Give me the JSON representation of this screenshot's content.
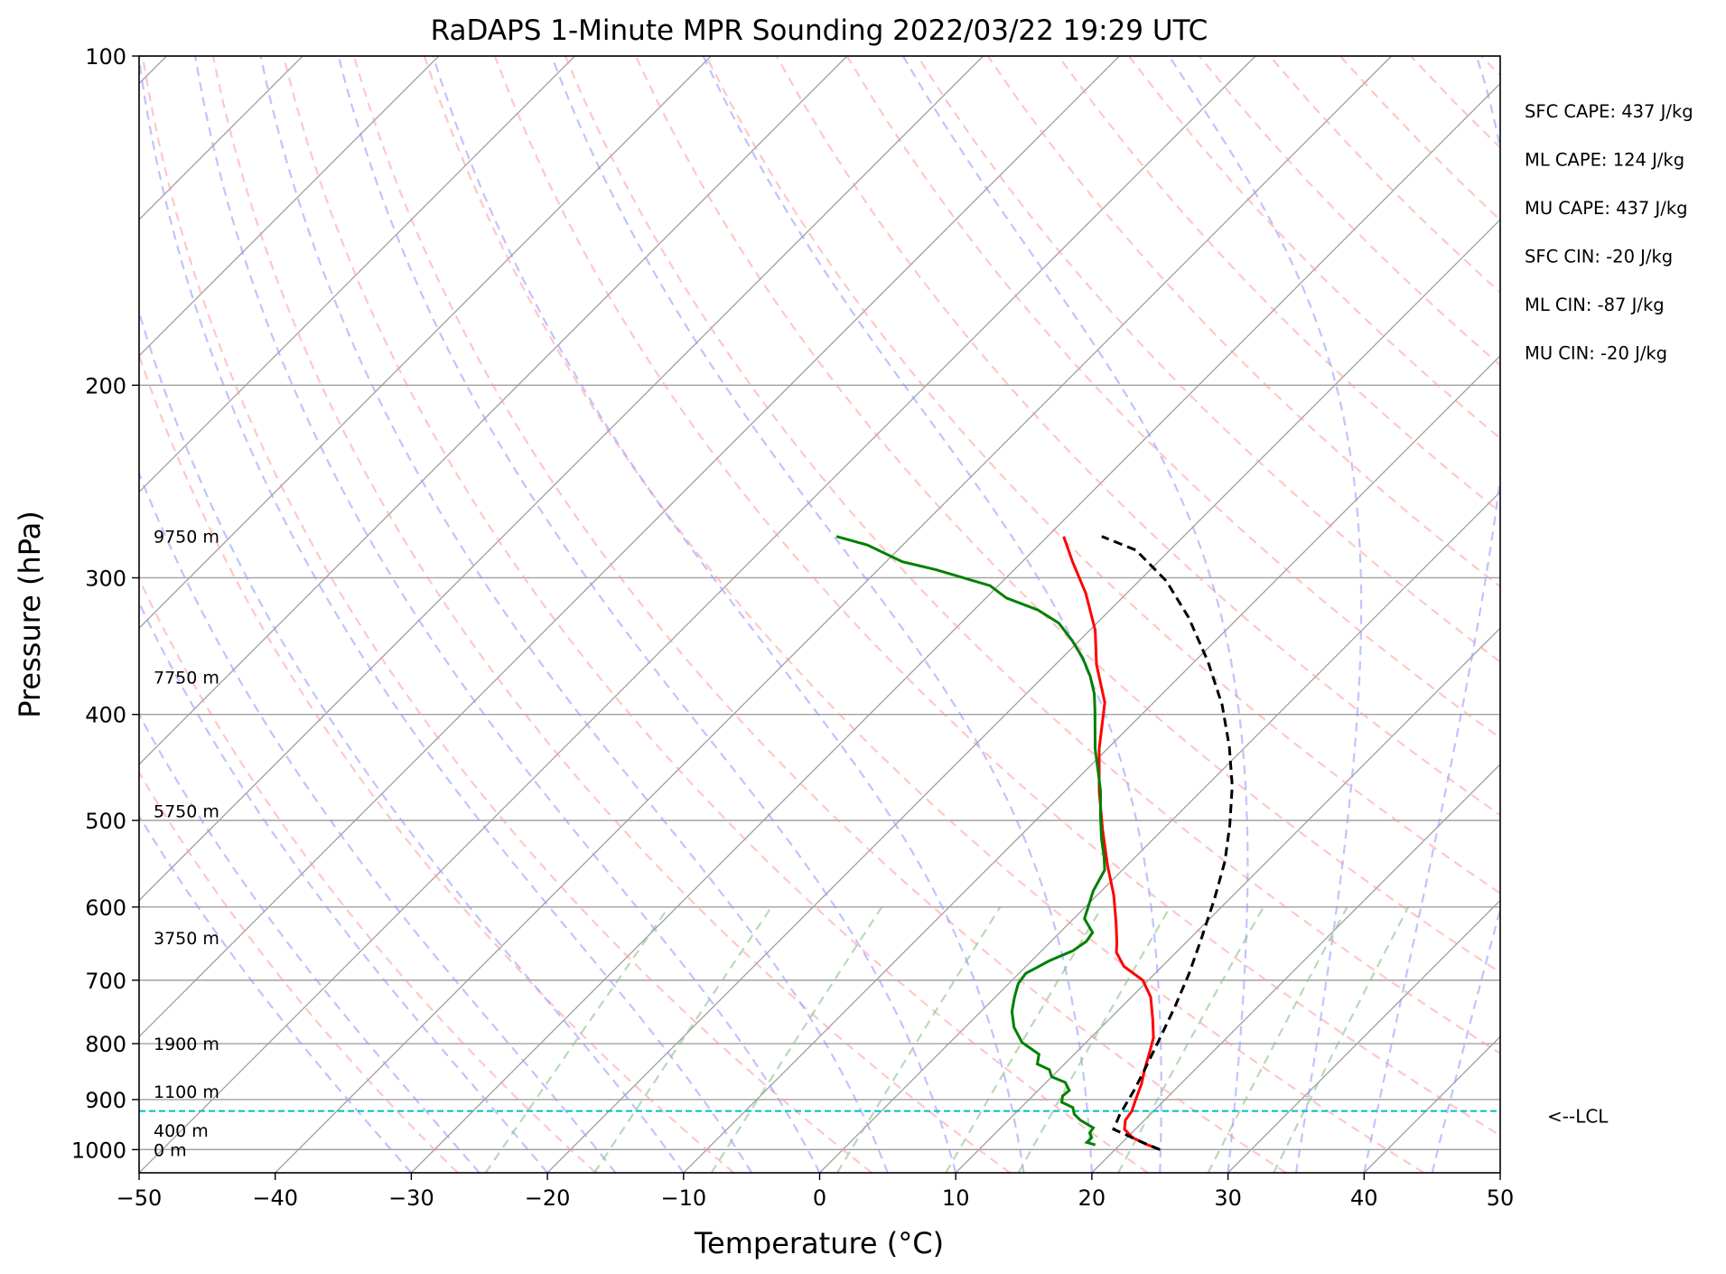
{
  "chart_data": {
    "type": "line",
    "title": "RaDAPS 1-Minute MPR Sounding 2022/03/22 19:29 UTC",
    "xlabel": "Temperature (°C)",
    "ylabel": "Pressure (hPa)",
    "xlim": [
      -50,
      50
    ],
    "ylim": [
      1050,
      100
    ],
    "y_scale": "log",
    "skew": "skew-T",
    "x_ticks": [
      -50,
      -40,
      -30,
      -20,
      -10,
      0,
      10,
      20,
      30,
      40,
      50
    ],
    "x_tick_labels": [
      "−50",
      "−40",
      "−30",
      "−20",
      "−10",
      "0",
      "10",
      "20",
      "30",
      "40",
      "50"
    ],
    "y_ticks": [
      100,
      200,
      300,
      400,
      500,
      600,
      700,
      800,
      900,
      1000
    ],
    "y_tick_labels": [
      "100",
      "200",
      "300",
      "400",
      "500",
      "600",
      "700",
      "800",
      "900",
      "1000"
    ],
    "grid": true,
    "colors": {
      "temperature": "#ff0000",
      "dewpoint": "#008000",
      "parcel": "#000000",
      "lcl": "#00bfbf",
      "dry_adiabats": "#ff9999",
      "moist_adiabats": "#9999ff",
      "mixing_ratio": "#88c088",
      "isotherms": "#a0a0a0"
    },
    "series": [
      {
        "key": "temperature",
        "style": "solid",
        "points": [
          [
            23.3,
            1000
          ],
          [
            21.8,
            988
          ],
          [
            20.4,
            975
          ],
          [
            19.2,
            958
          ],
          [
            18.6,
            940
          ],
          [
            18.4,
            922
          ],
          [
            17.8,
            898
          ],
          [
            17.1,
            870
          ],
          [
            16.3,
            845
          ],
          [
            15.4,
            815
          ],
          [
            14.6,
            790
          ],
          [
            13.2,
            760
          ],
          [
            11.4,
            725
          ],
          [
            9.6,
            700
          ],
          [
            7.2,
            680
          ],
          [
            5.6,
            660
          ],
          [
            5.0,
            648
          ],
          [
            3.4,
            620
          ],
          [
            1.2,
            585
          ],
          [
            -1.4,
            550
          ],
          [
            -4.4,
            510
          ],
          [
            -7.5,
            470
          ],
          [
            -10.6,
            430
          ],
          [
            -13.6,
            390
          ],
          [
            -17.0,
            360
          ],
          [
            -19.6,
            335
          ],
          [
            -23.0,
            310
          ],
          [
            -26.3,
            290
          ],
          [
            -28.8,
            275
          ]
        ]
      },
      {
        "key": "dewpoint",
        "style": "solid",
        "points": [
          [
            18.2,
            990
          ],
          [
            17.4,
            985
          ],
          [
            17.4,
            975
          ],
          [
            16.9,
            965
          ],
          [
            16.8,
            955
          ],
          [
            15.3,
            940
          ],
          [
            14.4,
            928
          ],
          [
            13.8,
            915
          ],
          [
            12.6,
            905
          ],
          [
            12.2,
            893
          ],
          [
            12.3,
            883
          ],
          [
            11.4,
            868
          ],
          [
            10.0,
            858
          ],
          [
            9.3,
            845
          ],
          [
            8.0,
            835
          ],
          [
            7.4,
            818
          ],
          [
            5.3,
            798
          ],
          [
            3.6,
            773
          ],
          [
            2.3,
            748
          ],
          [
            1.4,
            725
          ],
          [
            0.7,
            705
          ],
          [
            0.5,
            690
          ],
          [
            1.3,
            672
          ],
          [
            2.3,
            658
          ],
          [
            2.6,
            645
          ],
          [
            2.4,
            633
          ],
          [
            0.8,
            615
          ],
          [
            -0.6,
            580
          ],
          [
            -1.3,
            555
          ],
          [
            -2.3,
            540
          ],
          [
            -3.8,
            520
          ],
          [
            -5.6,
            495
          ],
          [
            -7.4,
            470
          ],
          [
            -9.1,
            450
          ],
          [
            -10.9,
            430
          ],
          [
            -12.4,
            412
          ],
          [
            -13.7,
            397
          ],
          [
            -15.0,
            383
          ],
          [
            -16.6,
            369
          ],
          [
            -18.5,
            355
          ],
          [
            -20.6,
            342
          ],
          [
            -22.8,
            330
          ],
          [
            -25.3,
            321
          ],
          [
            -28.5,
            313
          ],
          [
            -30.6,
            305
          ],
          [
            -35.7,
            295
          ],
          [
            -38.8,
            290
          ],
          [
            -42.6,
            280
          ],
          [
            -45.5,
            275
          ]
        ]
      },
      {
        "key": "parcel",
        "style": "dashed",
        "points": [
          [
            23.3,
            1000
          ],
          [
            21.5,
            985
          ],
          [
            19.8,
            970
          ],
          [
            18.4,
            958
          ],
          [
            17.8,
            930
          ],
          [
            17.0,
            880
          ],
          [
            16.2,
            840
          ],
          [
            15.1,
            790
          ],
          [
            13.9,
            740
          ],
          [
            12.5,
            690
          ],
          [
            10.8,
            640
          ],
          [
            8.9,
            590
          ],
          [
            6.9,
            545
          ],
          [
            4.6,
            505
          ],
          [
            1.9,
            465
          ],
          [
            -1.2,
            428
          ],
          [
            -4.8,
            392
          ],
          [
            -9.0,
            358
          ],
          [
            -13.7,
            326
          ],
          [
            -18.0,
            302
          ],
          [
            -22.5,
            283
          ],
          [
            -26.0,
            275
          ]
        ]
      }
    ],
    "lcl_pressure": 922,
    "lcl_label": "<--LCL",
    "height_labels": [
      {
        "text": "9750 m",
        "p": 275
      },
      {
        "text": "7750 m",
        "p": 370
      },
      {
        "text": "5750 m",
        "p": 490
      },
      {
        "text": "3750 m",
        "p": 640
      },
      {
        "text": "1900 m",
        "p": 800
      },
      {
        "text": "1100 m",
        "p": 885
      },
      {
        "text": "400 m",
        "p": 960
      },
      {
        "text": "0 m",
        "p": 1000
      }
    ],
    "indices": [
      {
        "text": "SFC CAPE: 437 J/kg"
      },
      {
        "text": "ML CAPE: 124 J/kg"
      },
      {
        "text": "MU CAPE: 437 J/kg"
      },
      {
        "text": "SFC CIN: -20 J/kg"
      },
      {
        "text": "ML CIN: -87 J/kg"
      },
      {
        "text": "MU CIN: -20 J/kg"
      }
    ]
  }
}
